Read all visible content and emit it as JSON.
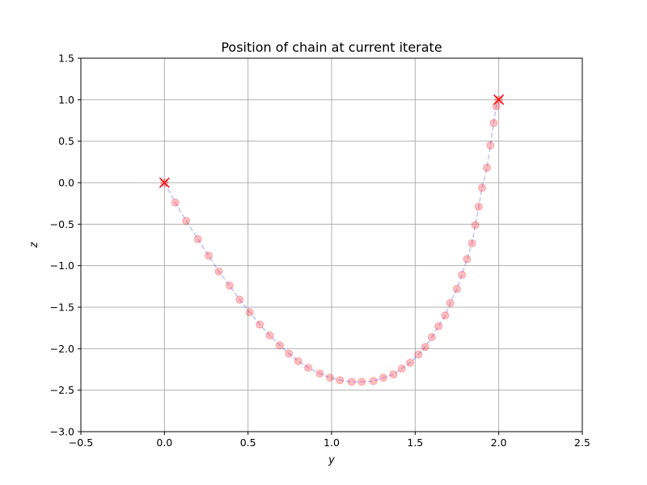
{
  "chart_data": {
    "type": "scatter",
    "title": "Position of chain at current iterate",
    "xlabel": "y",
    "ylabel": "z",
    "xlim": [
      -0.5,
      2.5
    ],
    "ylim": [
      -3.0,
      1.5
    ],
    "grid": true,
    "xticks": [
      -0.5,
      0.0,
      0.5,
      1.0,
      1.5,
      2.0,
      2.5
    ],
    "yticks": [
      -3.0,
      -2.5,
      -2.0,
      -1.5,
      -1.0,
      -0.5,
      0.0,
      0.5,
      1.0,
      1.5
    ],
    "xtick_labels": [
      "−0.5",
      "0.0",
      "0.5",
      "1.0",
      "1.5",
      "2.0",
      "2.5"
    ],
    "ytick_labels": [
      "−3.0",
      "−2.5",
      "−2.0",
      "−1.5",
      "−1.0",
      "−0.5",
      "0.0",
      "0.5",
      "1.0",
      "1.5"
    ],
    "colors": {
      "line": "#0000ff",
      "points": "#ff0000",
      "endpoints": "#ff0000",
      "grid": "#b0b0b0"
    },
    "endpoints": [
      {
        "x": 0.0,
        "y": 0.0
      },
      {
        "x": 2.0,
        "y": 1.0
      }
    ],
    "series": [
      {
        "x": [
          0.0,
          0.065,
          0.13,
          0.2,
          0.265,
          0.325,
          0.39,
          0.45,
          0.51,
          0.57,
          0.63,
          0.69,
          0.745,
          0.8,
          0.86,
          0.93,
          0.99,
          1.05,
          1.12,
          1.18,
          1.25,
          1.31,
          1.37,
          1.42,
          1.47,
          1.52,
          1.56,
          1.6,
          1.64,
          1.68,
          1.71,
          1.75,
          1.78,
          1.81,
          1.84,
          1.86,
          1.88,
          1.9,
          1.93,
          1.95,
          1.97,
          1.985,
          2.0
        ],
        "y": [
          0.0,
          -0.24,
          -0.46,
          -0.68,
          -0.88,
          -1.07,
          -1.24,
          -1.41,
          -1.56,
          -1.71,
          -1.84,
          -1.96,
          -2.06,
          -2.15,
          -2.23,
          -2.3,
          -2.35,
          -2.38,
          -2.4,
          -2.4,
          -2.39,
          -2.35,
          -2.31,
          -2.24,
          -2.17,
          -2.07,
          -1.98,
          -1.86,
          -1.73,
          -1.6,
          -1.45,
          -1.28,
          -1.11,
          -0.92,
          -0.73,
          -0.51,
          -0.29,
          -0.06,
          0.18,
          0.45,
          0.72,
          0.92,
          1.0
        ]
      }
    ]
  }
}
